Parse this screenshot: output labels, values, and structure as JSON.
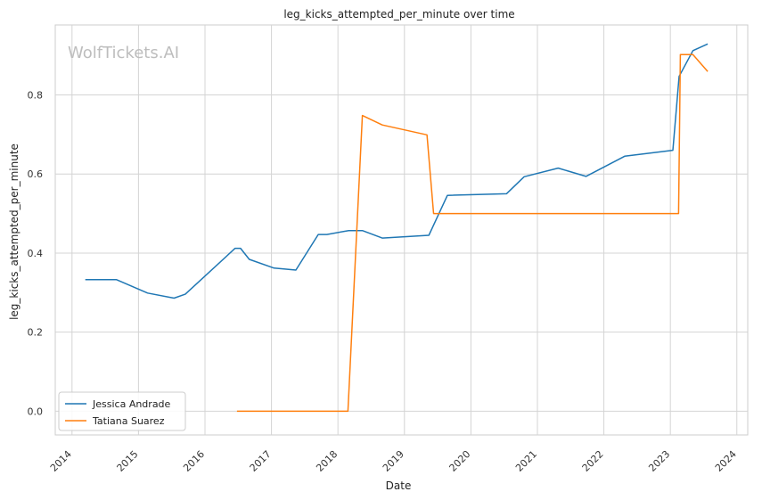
{
  "chart_data": {
    "type": "line",
    "title": "leg_kicks_attempted_per_minute over time",
    "xlabel": "Date",
    "ylabel": "leg_kicks_attempted_per_minute",
    "watermark": "WolfTickets.AI",
    "x_ticks": [
      "2014",
      "2015",
      "2016",
      "2017",
      "2018",
      "2019",
      "2020",
      "2021",
      "2022",
      "2023",
      "2024"
    ],
    "y_ticks": [
      "0.0",
      "0.2",
      "0.4",
      "0.6",
      "0.8"
    ],
    "xlim": [
      "2013-10-01",
      "2024-03-01"
    ],
    "ylim": [
      -0.06,
      0.977
    ],
    "grid": true,
    "legend_position": "lower-left",
    "series": [
      {
        "name": "Jessica Andrade",
        "color": "#1f77b4",
        "points": [
          [
            "2014-03-15",
            0.333
          ],
          [
            "2014-09-01",
            0.333
          ],
          [
            "2015-02-20",
            0.299
          ],
          [
            "2015-07-15",
            0.286
          ],
          [
            "2015-09-15",
            0.296
          ],
          [
            "2016-06-15",
            0.412
          ],
          [
            "2016-07-15",
            0.412
          ],
          [
            "2016-09-01",
            0.384
          ],
          [
            "2017-01-15",
            0.362
          ],
          [
            "2017-05-15",
            0.357
          ],
          [
            "2017-09-15",
            0.447
          ],
          [
            "2017-11-01",
            0.447
          ],
          [
            "2018-03-01",
            0.457
          ],
          [
            "2018-05-15",
            0.457
          ],
          [
            "2018-09-01",
            0.438
          ],
          [
            "2019-05-15",
            0.445
          ],
          [
            "2019-08-25",
            0.546
          ],
          [
            "2020-07-15",
            0.55
          ],
          [
            "2020-10-20",
            0.593
          ],
          [
            "2021-04-25",
            0.615
          ],
          [
            "2021-09-25",
            0.594
          ],
          [
            "2022-04-25",
            0.645
          ],
          [
            "2023-01-15",
            0.66
          ],
          [
            "2023-02-18",
            0.847
          ],
          [
            "2023-05-05",
            0.912
          ],
          [
            "2023-07-25",
            0.929
          ]
        ]
      },
      {
        "name": "Tatiana Suarez",
        "color": "#ff7f0e",
        "points": [
          [
            "2016-06-25",
            0.0
          ],
          [
            "2018-02-25",
            0.0
          ],
          [
            "2018-05-15",
            0.748
          ],
          [
            "2018-09-01",
            0.724
          ],
          [
            "2019-05-05",
            0.699
          ],
          [
            "2019-06-10",
            0.5
          ],
          [
            "2023-02-15",
            0.5
          ],
          [
            "2023-02-25",
            0.902
          ],
          [
            "2023-05-05",
            0.902
          ],
          [
            "2023-07-25",
            0.859
          ]
        ]
      }
    ]
  }
}
